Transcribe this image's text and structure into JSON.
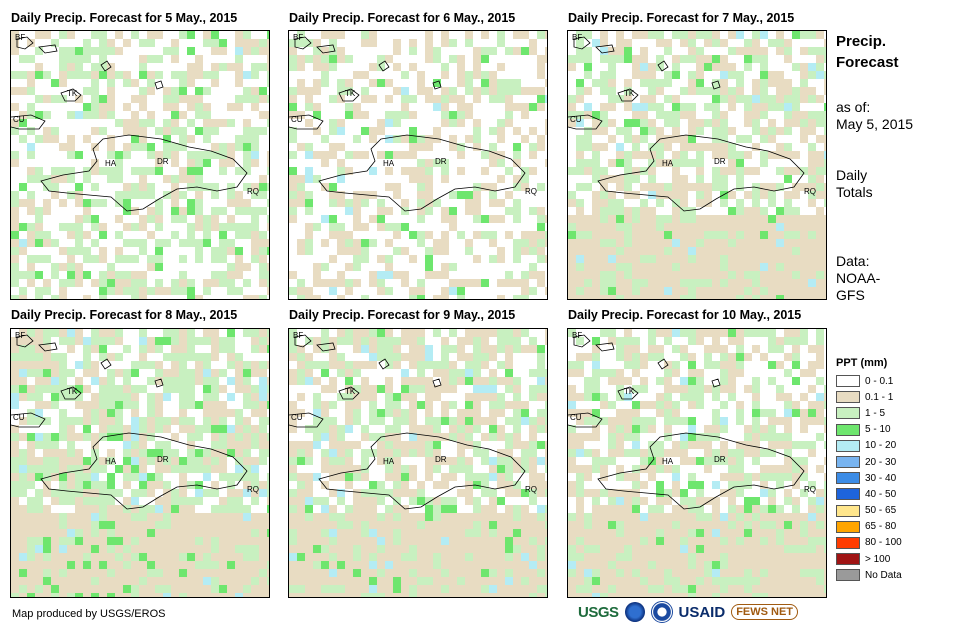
{
  "panels": [
    {
      "title": "Daily Precip. Forecast for 5 May., 2015",
      "date": "5 May., 2015"
    },
    {
      "title": "Daily Precip. Forecast for 6 May., 2015",
      "date": "6 May., 2015"
    },
    {
      "title": "Daily Precip. Forecast for 7 May., 2015",
      "date": "7 May., 2015"
    },
    {
      "title": "Daily Precip. Forecast for 8 May., 2015",
      "date": "8 May., 2015"
    },
    {
      "title": "Daily Precip. Forecast for 9 May., 2015",
      "date": "9 May., 2015"
    },
    {
      "title": "Daily Precip. Forecast for 10 May., 2015",
      "date": "10 May., 2015"
    }
  ],
  "map_labels": {
    "bf": "BF",
    "tk": "TK",
    "cu": "CU",
    "ha": "HA",
    "dr": "DR",
    "rq": "RQ"
  },
  "side": {
    "heading_line1": "Precip.",
    "heading_line2": "Forecast",
    "asof_label": "as of:",
    "asof_date": "May 5, 2015",
    "totals_line1": "Daily",
    "totals_line2": "Totals",
    "data_line1": "Data:",
    "data_line2": "NOAA-",
    "data_line3": "GFS"
  },
  "legend": {
    "title": "PPT (mm)",
    "items": [
      {
        "label": "0 - 0.1",
        "color": "#ffffff"
      },
      {
        "label": "0.1 - 1",
        "color": "#e8dcc2"
      },
      {
        "label": "1 - 5",
        "color": "#c8f0c0"
      },
      {
        "label": "5 - 10",
        "color": "#6ee66e"
      },
      {
        "label": "10 - 20",
        "color": "#b4ecf4"
      },
      {
        "label": "20 - 30",
        "color": "#78b4f0"
      },
      {
        "label": "30 - 40",
        "color": "#3c8ce6"
      },
      {
        "label": "40 - 50",
        "color": "#1e64dc"
      },
      {
        "label": "50 - 65",
        "color": "#ffe68c"
      },
      {
        "label": "65 - 80",
        "color": "#ffa500"
      },
      {
        "label": "80 - 100",
        "color": "#ff3c00"
      },
      {
        "label": "> 100",
        "color": "#a01414"
      },
      {
        "label": "No Data",
        "color": "#9a9a9a"
      }
    ]
  },
  "footer": {
    "credit": "Map produced by USGS/EROS",
    "logo_usgs": "USGS",
    "logo_usaid": "USAID",
    "logo_fews": "FEWS NET"
  },
  "panel_profiles": [
    {
      "white": 0.42,
      "tan": 0.22,
      "green": 0.3,
      "dgreen": 0.05,
      "cyan": 0.01,
      "tan_south": false
    },
    {
      "white": 0.55,
      "tan": 0.25,
      "green": 0.15,
      "dgreen": 0.04,
      "cyan": 0.01,
      "tan_south": false
    },
    {
      "white": 0.35,
      "tan": 0.3,
      "green": 0.3,
      "dgreen": 0.03,
      "cyan": 0.02,
      "tan_south": true
    },
    {
      "white": 0.25,
      "tan": 0.3,
      "green": 0.35,
      "dgreen": 0.06,
      "cyan": 0.04,
      "tan_south": true
    },
    {
      "white": 0.3,
      "tan": 0.35,
      "green": 0.28,
      "dgreen": 0.03,
      "cyan": 0.04,
      "tan_south": true
    },
    {
      "white": 0.38,
      "tan": 0.32,
      "green": 0.25,
      "dgreen": 0.03,
      "cyan": 0.02,
      "tan_south": true
    }
  ]
}
